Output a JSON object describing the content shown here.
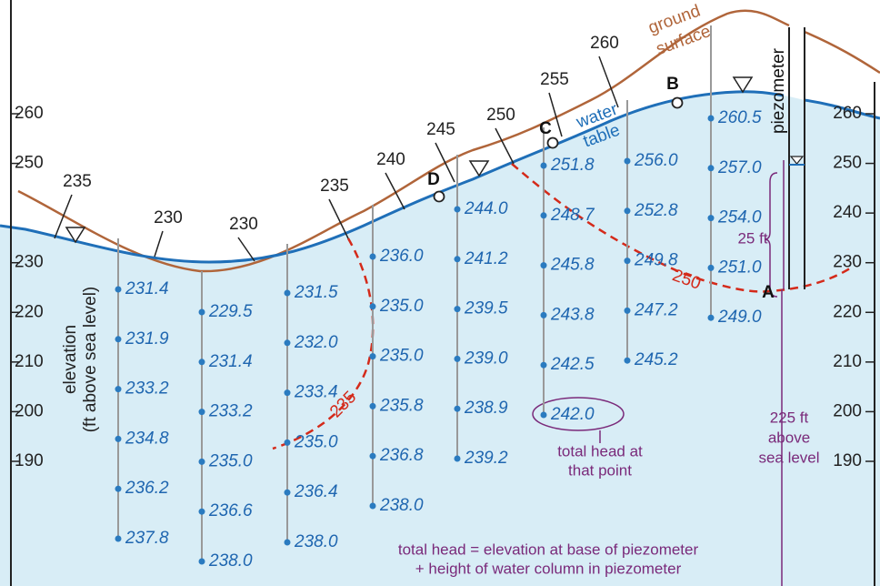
{
  "left_axis": {
    "labels": [
      260,
      250,
      230,
      220,
      210,
      200,
      190
    ]
  },
  "right_axis": {
    "labels": [
      260,
      250,
      240,
      230,
      220,
      210,
      200,
      190
    ]
  },
  "axis_title": [
    "elevation",
    "(ft above sea level)"
  ],
  "labels": {
    "ground": [
      "ground",
      "surface"
    ],
    "water_table": [
      "water",
      "table"
    ],
    "piezometer": "piezometer"
  },
  "contours": [
    235,
    230,
    230,
    235,
    240,
    245,
    250,
    255,
    260
  ],
  "equipotentials": [
    235,
    250
  ],
  "points": [
    "A",
    "B",
    "C",
    "D"
  ],
  "wells": [
    [
      "231.4",
      "231.9",
      "233.2",
      "234.8",
      "236.2",
      "237.8"
    ],
    [
      "229.5",
      "231.4",
      "233.2",
      "235.0",
      "236.6",
      "238.0"
    ],
    [
      "231.5",
      "232.0",
      "233.4",
      "235.0",
      "236.4",
      "238.0"
    ],
    [
      "236.0",
      "235.0",
      "235.0",
      "235.8",
      "236.8",
      "238.0"
    ],
    [
      "244.0",
      "241.2",
      "239.5",
      "239.0",
      "238.9",
      "239.2"
    ],
    [
      "251.8",
      "248.7",
      "245.8",
      "243.8",
      "242.5",
      "242.0"
    ],
    [
      "256.0",
      "252.8",
      "249.8",
      "247.2",
      "245.2"
    ],
    [
      "260.5",
      "257.0",
      "254.0",
      "251.0",
      "249.0"
    ]
  ],
  "annotations": {
    "depth": "25 ft",
    "base": [
      "225 ft",
      "above",
      "sea level"
    ],
    "circled": [
      "total head at",
      "that point"
    ],
    "formula": [
      "total head = elevation at base of piezometer",
      "+ height of water column in piezometer"
    ]
  }
}
